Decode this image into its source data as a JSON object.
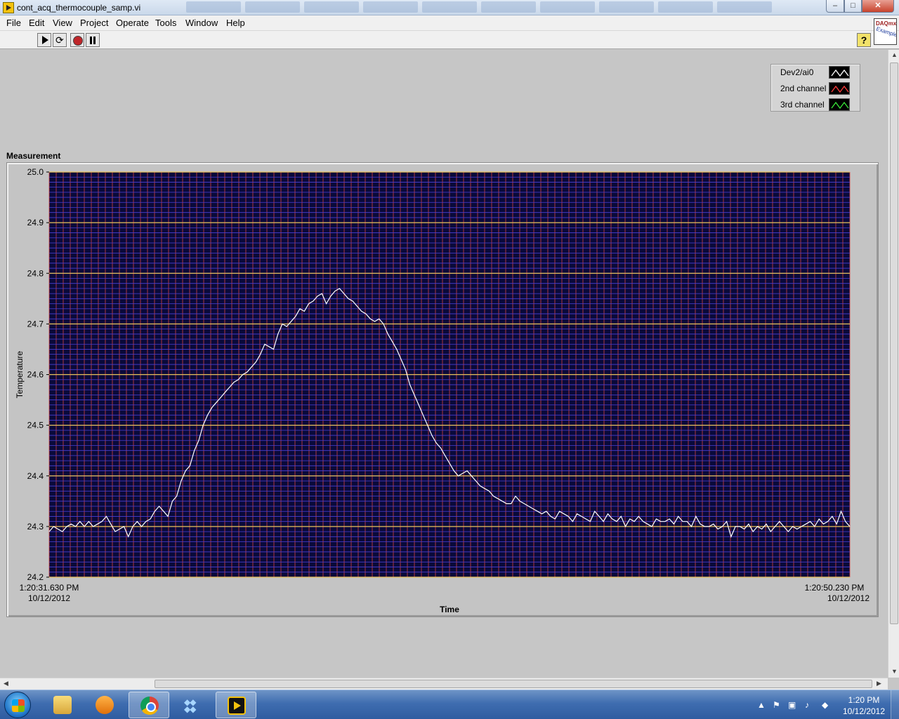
{
  "window": {
    "title": "cont_acq_thermocouple_samp.vi",
    "controls": {
      "minimize": "–",
      "maximize": "□",
      "close": "✕"
    }
  },
  "menu": [
    "File",
    "Edit",
    "View",
    "Project",
    "Operate",
    "Tools",
    "Window",
    "Help"
  ],
  "toolbar": {
    "icons": [
      "run-arrow-icon",
      "run-continuously-icon",
      "abort-icon",
      "pause-icon"
    ],
    "help": "?"
  },
  "logo": {
    "line1": "DAQmx",
    "line2": "Example"
  },
  "legend": [
    {
      "label": "Dev2/ai0",
      "color": "#ffffff"
    },
    {
      "label": "2nd channel",
      "color": "#ff3b3b"
    },
    {
      "label": "3rd channel",
      "color": "#39e639"
    }
  ],
  "chart_data": {
    "type": "line",
    "title": "Measurement",
    "xlabel": "Time",
    "ylabel": "Temperature",
    "ylim": [
      24.2,
      25.0
    ],
    "yticks": [
      "25.0",
      "24.9",
      "24.8",
      "24.7",
      "24.6",
      "24.5",
      "24.4",
      "24.3",
      "24.2"
    ],
    "x_start": {
      "time": "1:20:31.630 PM",
      "date": "10/12/2012"
    },
    "x_end": {
      "time": "1:20:50.230 PM",
      "date": "10/12/2012"
    },
    "grid": true,
    "background": "#0a0a3a",
    "major_grid_color": "#e8c15a",
    "minor_grid_color": "#4a3fd8",
    "minor_grid_x_color": "#d94040",
    "series": [
      {
        "color": "#ffffff",
        "values": [
          24.29,
          24.3,
          24.295,
          24.29,
          24.3,
          24.305,
          24.3,
          24.31,
          24.3,
          24.31,
          24.3,
          24.305,
          24.31,
          24.32,
          24.305,
          24.29,
          24.295,
          24.3,
          24.28,
          24.3,
          24.31,
          24.3,
          24.31,
          24.315,
          24.33,
          24.34,
          24.33,
          24.32,
          24.35,
          24.36,
          24.39,
          24.41,
          24.42,
          24.45,
          24.47,
          24.5,
          24.52,
          24.535,
          24.545,
          24.555,
          24.565,
          24.575,
          24.585,
          24.59,
          24.6,
          24.605,
          24.615,
          24.625,
          24.64,
          24.66,
          24.655,
          24.65,
          24.68,
          24.7,
          24.695,
          24.705,
          24.715,
          24.73,
          24.725,
          24.74,
          24.745,
          24.755,
          24.76,
          24.74,
          24.755,
          24.765,
          24.77,
          24.76,
          24.75,
          24.745,
          24.735,
          24.725,
          24.72,
          24.71,
          24.705,
          24.71,
          24.7,
          24.68,
          24.665,
          24.65,
          24.63,
          24.61,
          24.58,
          24.56,
          24.54,
          24.52,
          24.5,
          24.48,
          24.465,
          24.455,
          24.44,
          24.425,
          24.41,
          24.4,
          24.405,
          24.41,
          24.4,
          24.39,
          24.38,
          24.375,
          24.37,
          24.36,
          24.355,
          24.35,
          24.345,
          24.345,
          24.36,
          24.35,
          24.345,
          24.34,
          24.335,
          24.33,
          24.325,
          24.33,
          24.32,
          24.315,
          24.33,
          24.325,
          24.32,
          24.31,
          24.325,
          24.32,
          24.315,
          24.31,
          24.33,
          24.32,
          24.31,
          24.325,
          24.315,
          24.31,
          24.32,
          24.3,
          24.315,
          24.31,
          24.32,
          24.31,
          24.305,
          24.3,
          24.315,
          24.31,
          24.31,
          24.315,
          24.305,
          24.32,
          24.31,
          24.31,
          24.3,
          24.32,
          24.305,
          24.3,
          24.3,
          24.305,
          24.295,
          24.3,
          24.31,
          24.28,
          24.3,
          24.3,
          24.295,
          24.305,
          24.29,
          24.3,
          24.295,
          24.305,
          24.29,
          24.3,
          24.31,
          24.3,
          24.29,
          24.3,
          24.295,
          24.3,
          24.305,
          24.31,
          24.3,
          24.315,
          24.305,
          24.31,
          24.32,
          24.305,
          24.33,
          24.31,
          24.3
        ]
      }
    ]
  },
  "taskbar": {
    "apps": [
      "windows-explorer",
      "media-player",
      "chrome",
      "dropbox",
      "labview"
    ],
    "clock_time": "1:20 PM",
    "clock_date": "10/12/2012"
  }
}
